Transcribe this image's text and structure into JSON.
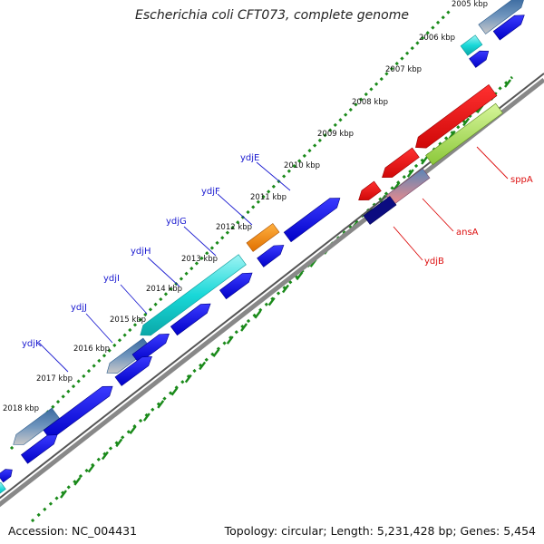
{
  "title": "Escherichia coli CFT073, complete genome",
  "footer": {
    "accession": "Accession: NC_004431",
    "stats": "Topology: circular; Length: 5,231,428 bp; Genes: 5,454"
  },
  "ticks": [
    {
      "label": "2005 kbp"
    },
    {
      "label": "2006 kbp"
    },
    {
      "label": "2007 kbp"
    },
    {
      "label": "2008 kbp"
    },
    {
      "label": "2009 kbp"
    },
    {
      "label": "2010 kbp"
    },
    {
      "label": "2011 kbp"
    },
    {
      "label": "2012 kbp"
    },
    {
      "label": "2013 kbp"
    },
    {
      "label": "2014 kbp"
    },
    {
      "label": "2015 kbp"
    },
    {
      "label": "2016 kbp"
    },
    {
      "label": "2017 kbp"
    },
    {
      "label": "2018 kbp"
    }
  ],
  "gene_labels": {
    "left": [
      "ydjE",
      "ydjF",
      "ydjG",
      "ydjH",
      "ydjI",
      "ydjJ",
      "ydjK"
    ],
    "right": [
      "sppA",
      "ansA",
      "ydjB"
    ]
  },
  "colors": {
    "gene_blue": "#0a0ae8",
    "gene_cyan": "#19dcdc",
    "gene_red": "#f01414",
    "gene_lime": "#a8e24a",
    "gene_orange": "#ff8c00",
    "gene_steel": "#4a86b6",
    "gene_navy": "#0c0c80",
    "gene_pink": "#e88888",
    "backbone": "#666666",
    "tick_green": "#1a8a1a",
    "label_blue": "#1a1ad0",
    "label_red": "#dd1111"
  }
}
